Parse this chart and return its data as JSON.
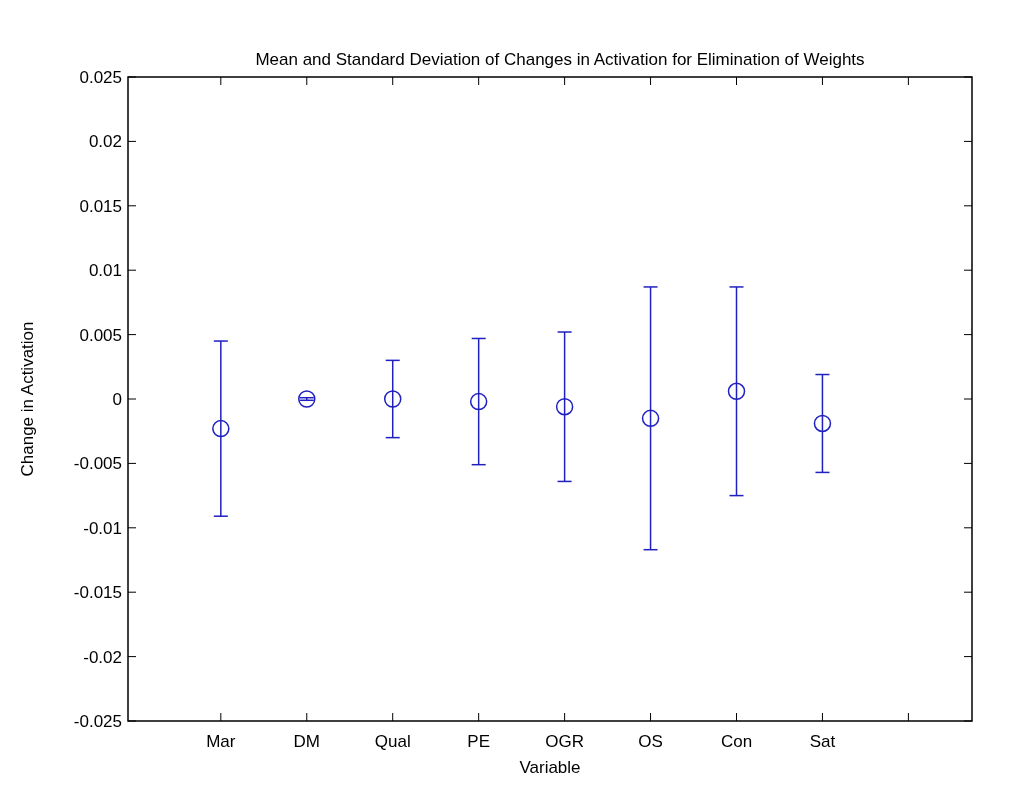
{
  "chart_data": {
    "type": "scatter",
    "title": "Mean and Standard Deviation of Changes in Activation for Elimination of Weights",
    "xlabel": "Variable",
    "ylabel": "Change in Activation",
    "categories": [
      "Mar",
      "DM",
      "Qual",
      "PE",
      "OGR",
      "OS",
      "Con",
      "Sat",
      null
    ],
    "ylim": [
      -0.025,
      0.025
    ],
    "yticks": [
      -0.025,
      -0.02,
      -0.015,
      -0.01,
      -0.005,
      0,
      0.005,
      0.01,
      0.015,
      0.02,
      0.025
    ],
    "series": [
      {
        "color": "#2020c0",
        "values": [
          -0.0023,
          0,
          0,
          -0.0002,
          -0.0006,
          -0.0015,
          0.0006,
          -0.0019,
          null
        ],
        "errors": [
          0.0068,
          0.0001,
          0.003,
          0.0049,
          0.0058,
          0.0102,
          0.0081,
          0.0038,
          null
        ]
      }
    ],
    "marker": "circle",
    "grid": false
  }
}
